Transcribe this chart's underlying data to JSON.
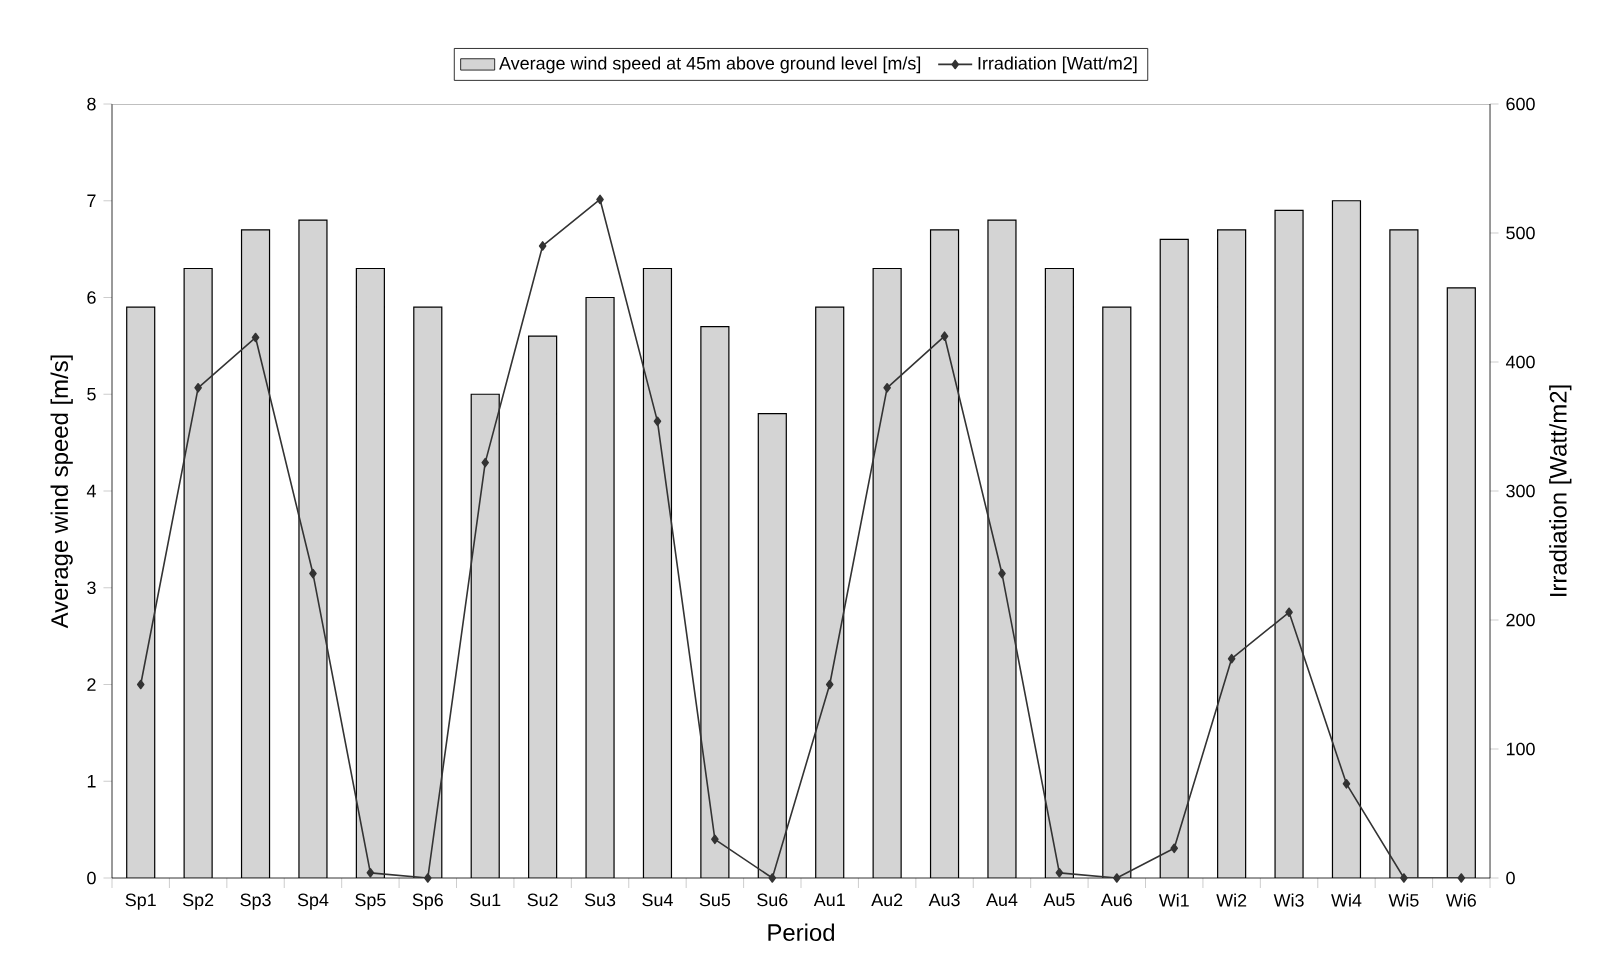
{
  "chart_data": {
    "type": "bar",
    "xlabel": "Period",
    "ylabel": "Average wind speed [m/s]",
    "y2label": "Irradiation [Watt/m2]",
    "categories": [
      "Sp1",
      "Sp2",
      "Sp3",
      "Sp4",
      "Sp5",
      "Sp6",
      "Su1",
      "Su2",
      "Su3",
      "Su4",
      "Su5",
      "Su6",
      "Au1",
      "Au2",
      "Au3",
      "Au4",
      "Au5",
      "Au6",
      "Wi1",
      "Wi2",
      "Wi3",
      "Wi4",
      "Wi5",
      "Wi6"
    ],
    "series": [
      {
        "name": "Average wind speed at 45m above ground level [m/s]",
        "color": "#d4d4d4",
        "values": [
          5.9,
          6.3,
          6.7,
          6.8,
          6.3,
          5.9,
          5.0,
          5.6,
          6.0,
          6.3,
          5.7,
          4.8,
          5.9,
          6.3,
          6.7,
          6.8,
          6.3,
          5.9,
          6.6,
          6.7,
          6.9,
          7.0,
          6.7,
          6.1
        ]
      },
      {
        "name": "Irradiation [Watt/m2]",
        "type": "line",
        "axis": "y2",
        "color": "#333333",
        "marker": "diamond",
        "values": [
          150,
          380,
          419,
          236,
          4,
          0,
          322,
          490,
          526,
          354,
          30,
          0,
          150,
          380,
          420,
          236,
          4,
          0,
          23,
          170,
          206,
          73,
          0,
          0
        ]
      }
    ],
    "ylim": [
      0,
      8
    ],
    "yticks": [
      0,
      1,
      2,
      3,
      4,
      5,
      6,
      7,
      8
    ],
    "y2lim": [
      0,
      600
    ],
    "y2ticks": [
      0,
      100,
      200,
      300,
      400,
      500,
      600
    ],
    "legend": "top"
  }
}
